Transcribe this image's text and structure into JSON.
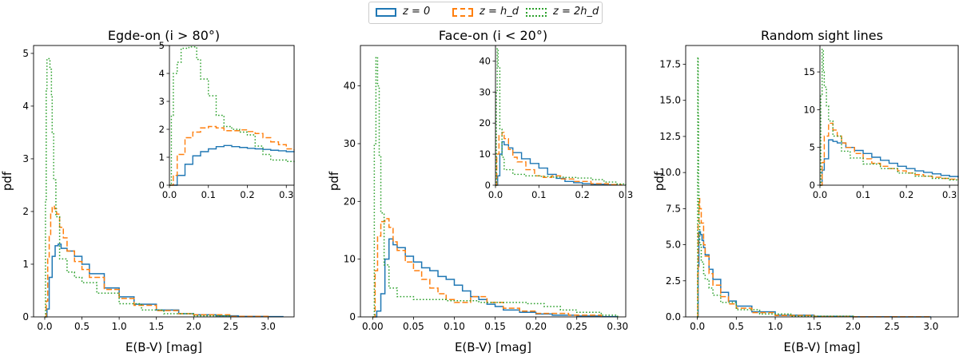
{
  "legend": {
    "entries": [
      {
        "label": "z = 0",
        "color": "#1f77b4",
        "style": "solid"
      },
      {
        "label": "z = h_d",
        "color": "#ff7f0e",
        "style": "dashed"
      },
      {
        "label": "z = 2h_d",
        "color": "#2ca02c",
        "style": "dotted"
      }
    ],
    "placement": "top-center"
  },
  "chart_data": [
    {
      "type": "line",
      "title": "Egde-on (i > 80°)",
      "xlabel": "E(B-V) [mag]",
      "ylabel": "pdf",
      "xlim": [
        -0.15,
        3.35
      ],
      "ylim": [
        0,
        5.15
      ],
      "xticks": [
        "0.0",
        "0.5",
        "1.0",
        "1.5",
        "2.0",
        "2.5",
        "3.0"
      ],
      "yticks": [
        "0",
        "1",
        "2",
        "3",
        "4",
        "5"
      ],
      "series": [
        {
          "name": "z = 0",
          "x": [
            0.0,
            0.03,
            0.06,
            0.1,
            0.14,
            0.18,
            0.22,
            0.3,
            0.4,
            0.5,
            0.6,
            0.8,
            1.0,
            1.2,
            1.5,
            1.8,
            2.0,
            2.3,
            2.6,
            3.0,
            3.2
          ],
          "y": [
            0.0,
            0.15,
            0.75,
            1.15,
            1.35,
            1.38,
            1.3,
            1.25,
            1.15,
            1.0,
            0.82,
            0.55,
            0.38,
            0.24,
            0.13,
            0.06,
            0.04,
            0.02,
            0.01,
            0.005,
            0.0
          ]
        },
        {
          "name": "z = h_d",
          "x": [
            0.0,
            0.02,
            0.04,
            0.06,
            0.08,
            0.1,
            0.13,
            0.16,
            0.2,
            0.25,
            0.3,
            0.4,
            0.5,
            0.6,
            0.8,
            1.0,
            1.2,
            1.5,
            1.8,
            2.0,
            2.5,
            3.0
          ],
          "y": [
            0.0,
            0.3,
            1.1,
            1.55,
            1.95,
            2.1,
            2.05,
            1.95,
            1.7,
            1.5,
            1.25,
            1.05,
            0.9,
            0.75,
            0.52,
            0.35,
            0.22,
            0.12,
            0.06,
            0.04,
            0.01,
            0.0
          ]
        },
        {
          "name": "z = 2h_d",
          "x": [
            0.0,
            0.01,
            0.02,
            0.03,
            0.05,
            0.07,
            0.09,
            0.1,
            0.12,
            0.15,
            0.2,
            0.3,
            0.4,
            0.5,
            0.7,
            1.0,
            1.3,
            1.6,
            2.0,
            2.5
          ],
          "y": [
            0.0,
            2.2,
            4.3,
            4.9,
            4.9,
            4.7,
            4.2,
            3.5,
            2.6,
            1.9,
            1.1,
            0.85,
            0.75,
            0.65,
            0.45,
            0.25,
            0.13,
            0.06,
            0.02,
            0.0
          ]
        }
      ],
      "inset": {
        "xlim": [
          0,
          0.32
        ],
        "ylim": [
          0,
          5.0
        ],
        "xticks": [
          "0.0",
          "0.1",
          "0.2",
          "0.3"
        ],
        "yticks": [
          "0",
          "1",
          "2",
          "3",
          "4",
          "5"
        ],
        "series": [
          {
            "name": "z = 0",
            "x": [
              0.0,
              0.02,
              0.04,
              0.06,
              0.08,
              0.1,
              0.12,
              0.14,
              0.16,
              0.18,
              0.2,
              0.22,
              0.24,
              0.26,
              0.28,
              0.3,
              0.32
            ],
            "y": [
              0.0,
              0.35,
              0.75,
              1.05,
              1.2,
              1.3,
              1.38,
              1.42,
              1.38,
              1.35,
              1.32,
              1.3,
              1.28,
              1.25,
              1.23,
              1.2,
              1.18
            ]
          },
          {
            "name": "z = h_d",
            "x": [
              0.0,
              0.01,
              0.02,
              0.04,
              0.06,
              0.08,
              0.1,
              0.12,
              0.14,
              0.16,
              0.18,
              0.2,
              0.22,
              0.24,
              0.26,
              0.28,
              0.3,
              0.32
            ],
            "y": [
              0.0,
              0.35,
              1.1,
              1.7,
              1.9,
              2.05,
              2.1,
              2.05,
              1.95,
              1.95,
              1.98,
              1.92,
              1.85,
              1.7,
              1.55,
              1.45,
              1.3,
              1.25
            ]
          },
          {
            "name": "z = 2h_d",
            "x": [
              0.0,
              0.005,
              0.01,
              0.02,
              0.03,
              0.05,
              0.07,
              0.08,
              0.1,
              0.12,
              0.14,
              0.16,
              0.18,
              0.2,
              0.22,
              0.24,
              0.26,
              0.28,
              0.3,
              0.32
            ],
            "y": [
              0.0,
              2.5,
              4.0,
              4.4,
              4.9,
              4.95,
              4.5,
              3.8,
              3.2,
              2.5,
              2.1,
              2.0,
              1.9,
              1.8,
              1.4,
              1.1,
              0.9,
              0.9,
              0.85,
              0.8
            ]
          }
        ]
      }
    },
    {
      "type": "line",
      "title": "Face-on (i < 20°)",
      "xlabel": "E(B-V) [mag]",
      "ylabel": "pdf",
      "xlim": [
        -0.015,
        0.31
      ],
      "ylim": [
        0,
        47
      ],
      "xticks": [
        "0.00",
        "0.05",
        "0.10",
        "0.15",
        "0.20",
        "0.25",
        "0.30"
      ],
      "yticks": [
        "0",
        "10",
        "20",
        "30",
        "40"
      ],
      "series": [
        {
          "name": "z = 0",
          "x": [
            0.0,
            0.005,
            0.01,
            0.015,
            0.02,
            0.025,
            0.03,
            0.04,
            0.05,
            0.06,
            0.07,
            0.08,
            0.09,
            0.1,
            0.11,
            0.12,
            0.13,
            0.14,
            0.15,
            0.16,
            0.18,
            0.2,
            0.22,
            0.25,
            0.28,
            0.3
          ],
          "y": [
            0.0,
            1.0,
            4.0,
            10.0,
            13.5,
            12.5,
            12.0,
            10.5,
            9.5,
            8.5,
            8.0,
            7.0,
            6.5,
            5.5,
            4.5,
            3.5,
            3.0,
            2.2,
            1.8,
            1.2,
            0.8,
            0.5,
            0.3,
            0.15,
            0.05,
            0.0
          ]
        },
        {
          "name": "z = h_d",
          "x": [
            0.0,
            0.003,
            0.006,
            0.01,
            0.015,
            0.02,
            0.025,
            0.03,
            0.04,
            0.05,
            0.06,
            0.07,
            0.08,
            0.09,
            0.1,
            0.11,
            0.12,
            0.14,
            0.16,
            0.18,
            0.2,
            0.24,
            0.28
          ],
          "y": [
            0.0,
            8.0,
            14.0,
            16.5,
            17.0,
            15.5,
            13.0,
            11.5,
            9.5,
            8.0,
            6.5,
            5.0,
            4.0,
            3.0,
            2.5,
            2.5,
            3.5,
            2.5,
            1.5,
            1.0,
            0.6,
            0.3,
            0.0
          ]
        },
        {
          "name": "z = 2h_d",
          "x": [
            0.0,
            0.002,
            0.004,
            0.006,
            0.008,
            0.01,
            0.014,
            0.02,
            0.03,
            0.05,
            0.07,
            0.09,
            0.11,
            0.13,
            0.15,
            0.17,
            0.19,
            0.21,
            0.23,
            0.25,
            0.28,
            0.3
          ],
          "y": [
            0.0,
            30.0,
            45.0,
            40.0,
            28.0,
            18.0,
            9.0,
            5.0,
            3.5,
            3.0,
            3.0,
            2.8,
            2.8,
            2.5,
            2.5,
            2.5,
            2.3,
            1.8,
            1.2,
            0.8,
            0.3,
            0.0
          ]
        }
      ],
      "inset": {
        "xlim": [
          0,
          0.3
        ],
        "ylim": [
          0,
          45
        ],
        "xticks": [
          "0.0",
          "0.1",
          "0.2",
          "0.3"
        ],
        "yticks": [
          "0",
          "10",
          "20",
          "30",
          "40"
        ],
        "series": [
          {
            "name": "z = 0",
            "x": [
              0.0,
              0.005,
              0.01,
              0.015,
              0.02,
              0.03,
              0.04,
              0.06,
              0.08,
              0.1,
              0.12,
              0.14,
              0.16,
              0.18,
              0.2,
              0.22,
              0.25,
              0.28
            ],
            "y": [
              0.0,
              3.0,
              10.0,
              14.0,
              13.0,
              12.0,
              10.5,
              8.5,
              7.0,
              5.5,
              3.5,
              2.2,
              1.2,
              0.8,
              0.5,
              0.3,
              0.15,
              0.0
            ]
          },
          {
            "name": "z = h_d",
            "x": [
              0.0,
              0.003,
              0.008,
              0.015,
              0.02,
              0.03,
              0.04,
              0.05,
              0.07,
              0.09,
              0.11,
              0.13,
              0.15,
              0.18,
              0.22,
              0.26,
              0.29
            ],
            "y": [
              0.0,
              10.0,
              16.0,
              17.0,
              15.0,
              11.5,
              9.0,
              7.5,
              5.0,
              3.0,
              2.5,
              3.0,
              2.0,
              1.2,
              0.5,
              0.2,
              0.0
            ]
          },
          {
            "name": "z = 2h_d",
            "x": [
              0.0,
              0.002,
              0.004,
              0.006,
              0.01,
              0.015,
              0.02,
              0.04,
              0.07,
              0.1,
              0.13,
              0.16,
              0.19,
              0.22,
              0.25,
              0.28,
              0.3
            ],
            "y": [
              0.0,
              30.0,
              44.0,
              38.0,
              18.0,
              9.0,
              5.0,
              3.5,
              3.0,
              2.8,
              2.6,
              2.5,
              2.3,
              1.8,
              1.0,
              0.4,
              0.0
            ]
          }
        ]
      }
    },
    {
      "type": "line",
      "title": "Random sight lines",
      "xlabel": "E(B-V) [mag]",
      "ylabel": "pdf",
      "xlim": [
        -0.15,
        3.35
      ],
      "ylim": [
        0,
        18.8
      ],
      "xticks": [
        "0.0",
        "0.5",
        "1.0",
        "1.5",
        "2.0",
        "2.5",
        "3.0"
      ],
      "yticks": [
        "0.0",
        "2.5",
        "5.0",
        "7.5",
        "10.0",
        "12.5",
        "15.0",
        "17.5"
      ],
      "series": [
        {
          "name": "z = 0",
          "x": [
            0.0,
            0.01,
            0.02,
            0.04,
            0.06,
            0.08,
            0.1,
            0.15,
            0.2,
            0.3,
            0.4,
            0.5,
            0.7,
            1.0,
            1.5,
            2.0,
            2.5,
            3.0
          ],
          "y": [
            0.0,
            3.5,
            5.9,
            5.7,
            5.3,
            4.8,
            4.3,
            3.3,
            2.6,
            1.7,
            1.1,
            0.75,
            0.35,
            0.12,
            0.04,
            0.01,
            0.0,
            0.0
          ]
        },
        {
          "name": "z = h_d",
          "x": [
            0.0,
            0.005,
            0.01,
            0.02,
            0.03,
            0.05,
            0.08,
            0.1,
            0.15,
            0.2,
            0.3,
            0.4,
            0.5,
            0.7,
            1.0,
            1.5,
            2.0,
            3.0
          ],
          "y": [
            0.0,
            3.0,
            6.5,
            8.2,
            7.5,
            6.5,
            5.0,
            4.2,
            3.0,
            2.2,
            1.4,
            0.9,
            0.6,
            0.3,
            0.1,
            0.03,
            0.01,
            0.0
          ]
        },
        {
          "name": "z = 2h_d",
          "x": [
            0.0,
            0.003,
            0.006,
            0.01,
            0.015,
            0.02,
            0.03,
            0.05,
            0.08,
            0.1,
            0.15,
            0.2,
            0.3,
            0.5,
            0.8,
            1.2,
            2.0
          ],
          "y": [
            0.0,
            10.0,
            18.0,
            14.0,
            9.0,
            6.5,
            5.0,
            3.8,
            3.0,
            2.6,
            2.0,
            1.5,
            1.0,
            0.5,
            0.2,
            0.05,
            0.0
          ]
        }
      ],
      "inset": {
        "xlim": [
          0,
          0.32
        ],
        "ylim": [
          0,
          18.5
        ],
        "xticks": [
          "0.0",
          "0.1",
          "0.2",
          "0.3"
        ],
        "yticks": [
          "0",
          "5",
          "10",
          "15"
        ],
        "series": [
          {
            "name": "z = 0",
            "x": [
              0.0,
              0.005,
              0.01,
              0.02,
              0.03,
              0.04,
              0.06,
              0.08,
              0.1,
              0.12,
              0.14,
              0.16,
              0.18,
              0.2,
              0.22,
              0.24,
              0.26,
              0.28,
              0.3,
              0.32
            ],
            "y": [
              0.0,
              2.0,
              3.5,
              6.0,
              5.8,
              5.6,
              5.0,
              4.6,
              4.2,
              3.7,
              3.3,
              2.9,
              2.5,
              2.2,
              1.9,
              1.7,
              1.5,
              1.3,
              1.15,
              1.0
            ]
          },
          {
            "name": "z = h_d",
            "x": [
              0.0,
              0.005,
              0.01,
              0.02,
              0.03,
              0.04,
              0.05,
              0.06,
              0.08,
              0.1,
              0.12,
              0.14,
              0.16,
              0.18,
              0.2,
              0.22,
              0.24,
              0.26,
              0.28,
              0.3,
              0.32
            ],
            "y": [
              0.0,
              3.0,
              6.5,
              8.2,
              7.3,
              6.5,
              5.6,
              5.0,
              4.2,
              3.5,
              2.9,
              2.5,
              2.2,
              1.9,
              1.6,
              1.4,
              1.2,
              1.05,
              0.9,
              0.8,
              0.7
            ]
          },
          {
            "name": "z = 2h_d",
            "x": [
              0.0,
              0.002,
              0.005,
              0.008,
              0.01,
              0.015,
              0.02,
              0.03,
              0.05,
              0.07,
              0.1,
              0.14,
              0.18,
              0.22,
              0.26,
              0.3,
              0.32
            ],
            "y": [
              0.0,
              12.0,
              18.0,
              15.0,
              13.0,
              10.5,
              8.5,
              6.5,
              4.5,
              3.6,
              2.8,
              2.2,
              1.6,
              1.2,
              0.9,
              0.7,
              0.6
            ]
          }
        ]
      }
    }
  ]
}
